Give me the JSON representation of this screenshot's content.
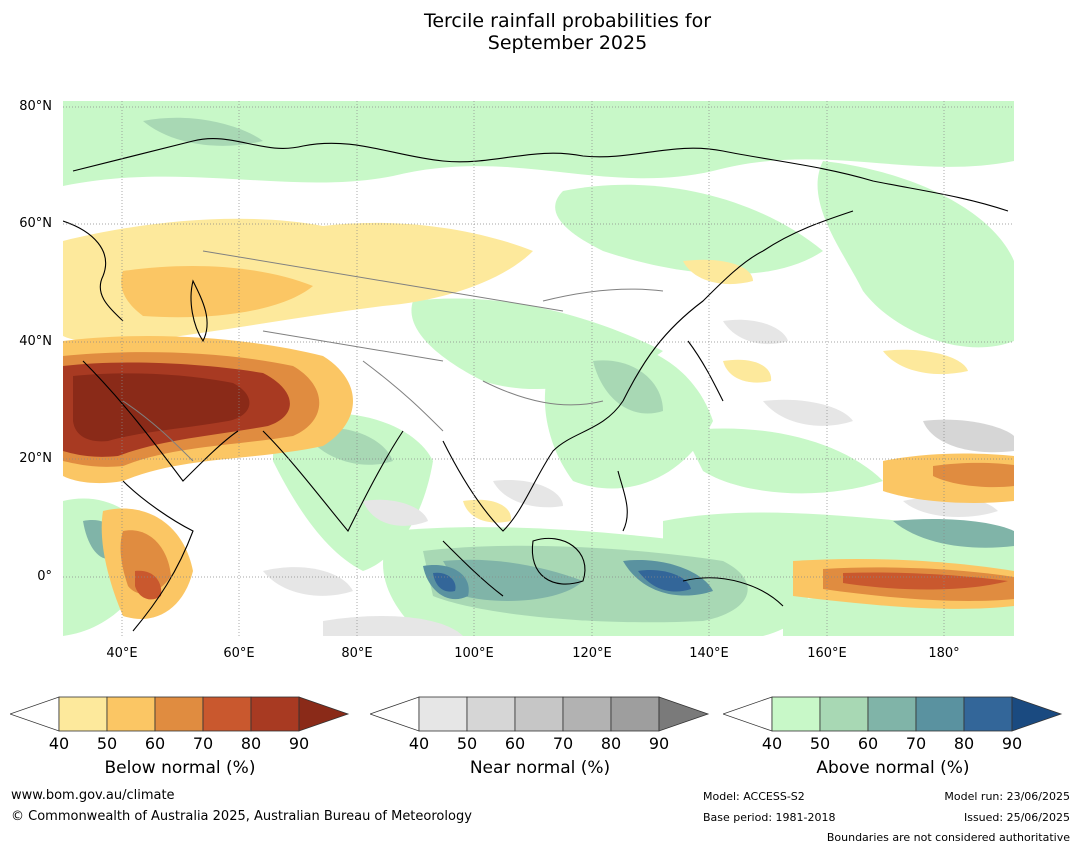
{
  "title": {
    "line1": "Tercile rainfall probabilities for",
    "line2": "September 2025"
  },
  "map": {
    "lat_labels": [
      "80°N",
      "60°N",
      "40°N",
      "20°N",
      "0°"
    ],
    "lon_labels": [
      "40°E",
      "60°E",
      "80°E",
      "100°E",
      "120°E",
      "140°E",
      "160°E",
      "180°"
    ],
    "lat_range": [
      -10,
      81
    ],
    "lon_range": [
      30,
      192
    ]
  },
  "colorbars": [
    {
      "name": "below",
      "title": "Below normal (%)",
      "ticks": [
        "40",
        "50",
        "60",
        "70",
        "80",
        "90"
      ],
      "colors": [
        "#ffffff",
        "#fde99c",
        "#fbc664",
        "#e08c40",
        "#c9582e",
        "#a83a22",
        "#8a2a18"
      ]
    },
    {
      "name": "near",
      "title": "Near normal (%)",
      "ticks": [
        "40",
        "50",
        "60",
        "70",
        "80",
        "90"
      ],
      "colors": [
        "#ffffff",
        "#e6e6e6",
        "#d6d6d6",
        "#c6c6c6",
        "#b2b2b2",
        "#9e9e9e",
        "#7a7a7a"
      ]
    },
    {
      "name": "above",
      "title": "Above normal (%)",
      "ticks": [
        "40",
        "50",
        "60",
        "70",
        "80",
        "90"
      ],
      "colors": [
        "#ffffff",
        "#c8f8c8",
        "#a8d8b4",
        "#80b4a8",
        "#5a92a0",
        "#336699",
        "#1a4a80"
      ]
    }
  ],
  "footer": {
    "website": "www.bom.gov.au/climate",
    "copyright": "© Commonwealth of Australia 2025, Australian Bureau of Meteorology",
    "model": "Model: ACCESS-S2",
    "base_period": "Base period: 1981-2018",
    "model_run": "Model run: 23/06/2025",
    "issued": "Issued: 25/06/2025",
    "disclaimer": "Boundaries are not considered authoritative"
  }
}
